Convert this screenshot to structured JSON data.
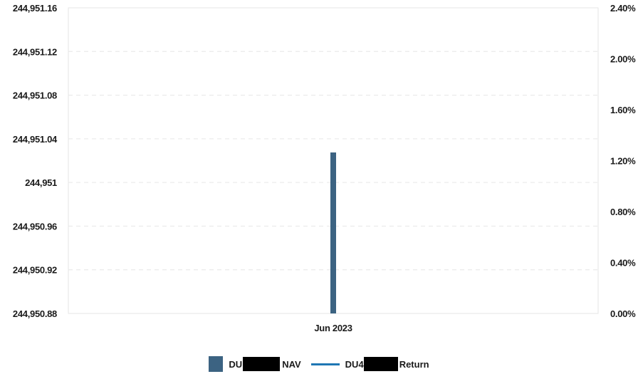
{
  "chart_data": {
    "type": "bar",
    "categories": [
      "Jun 2023"
    ],
    "series": [
      {
        "name_prefix": "DU",
        "name_suffix": "NAV",
        "axis": "left",
        "kind": "bar",
        "color": "#3c6382",
        "values": [
          244951.0275
        ]
      },
      {
        "name_prefix": "DU4",
        "name_suffix": "Return",
        "axis": "right",
        "kind": "line",
        "color": "#1f77b4",
        "values": [
          0
        ]
      }
    ],
    "y_left": {
      "ylim": [
        244950.88,
        244951.16
      ],
      "ticks": [
        244950.88,
        244950.92,
        244950.96,
        244951,
        244951.04,
        244951.08,
        244951.12,
        244951.16
      ],
      "tick_labels": [
        "244,950.88",
        "244,950.92",
        "244,950.96",
        "244,951",
        "244,951.04",
        "244,951.08",
        "244,951.12",
        "244,951.16"
      ]
    },
    "y_right": {
      "ylim": [
        0,
        2.4
      ],
      "ticks": [
        0,
        0.4,
        0.8,
        1.2,
        1.6,
        2.0,
        2.4
      ],
      "tick_labels": [
        "0.00%",
        "0.40%",
        "0.80%",
        "1.20%",
        "1.60%",
        "2.00%",
        "2.40%"
      ]
    },
    "grid": true,
    "legend": "bottom-center"
  }
}
